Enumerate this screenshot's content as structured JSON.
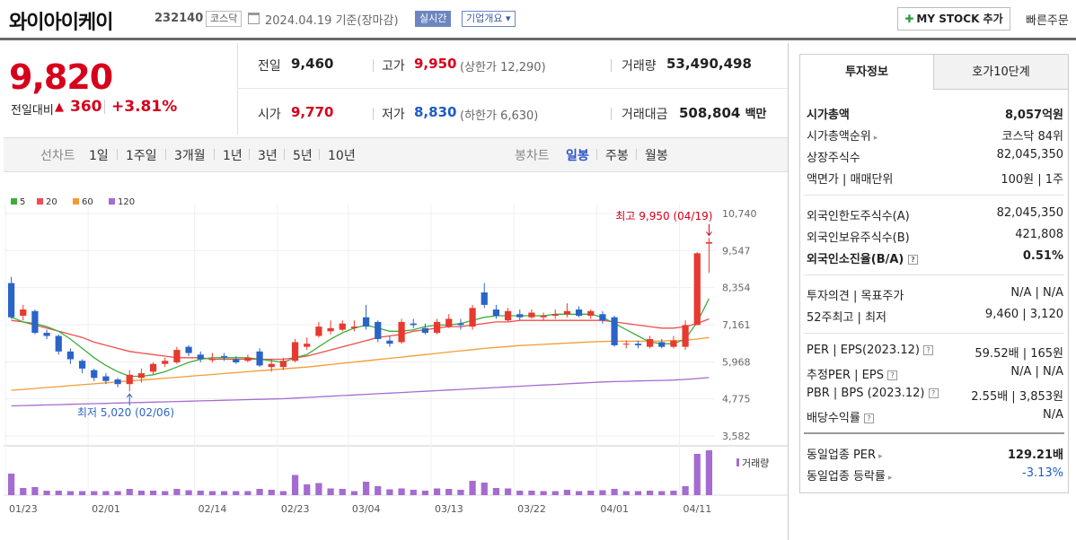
{
  "header": {
    "name": "와이아이케이",
    "code": "232140",
    "market": "코스닥",
    "date": "2024.04.19",
    "basis": "기준(장마감)",
    "realtime": "실시간",
    "company": "기업개요 ▾",
    "mystock": "MY STOCK 추가",
    "quick": "빠른주문"
  },
  "summary": {
    "price": "9,820",
    "change_label": "전일대비",
    "change": "360",
    "change_pct": "+3.81%",
    "prev_label": "전일",
    "prev": "9,460",
    "high_label": "고가",
    "high": "9,950",
    "upper_limit": "(상한가 12,290)",
    "volume_label": "거래량",
    "volume": "53,490,498",
    "open_label": "시가",
    "open": "9,770",
    "low_label": "저가",
    "low": "8,830",
    "lower_limit": "(하한가 6,630)",
    "amount_label": "거래대금",
    "amount": "508,804",
    "amount_unit": "백만"
  },
  "periods": {
    "line_label": "선차트",
    "items": [
      "1일",
      "1주일",
      "3개월",
      "1년",
      "3년",
      "5년",
      "10년"
    ],
    "candle_label": "봉차트",
    "candle_items": [
      "일봉",
      "주봉",
      "월봉"
    ]
  },
  "colors": {
    "up": "#e8392f",
    "down": "#2b64c7",
    "ma5": "#3dae3d",
    "ma20": "#ef4d4d",
    "ma60": "#f59b32",
    "ma120": "#a56bd1"
  },
  "chart_data": {
    "type": "candlestick",
    "legend": [
      "5",
      "20",
      "60",
      "120"
    ],
    "y_ticks": [
      "10,740",
      "9,547",
      "8,354",
      "7,161",
      "5,968",
      "4,775",
      "3,582"
    ],
    "ylim": [
      3582,
      10740
    ],
    "x_ticks": [
      "01/23",
      "02/01",
      "02/14",
      "02/23",
      "03/04",
      "03/13",
      "03/22",
      "04/01",
      "04/11"
    ],
    "max_label": "최고 9,950 (04/19)",
    "min_label": "최저 5,020 (02/06)",
    "volume_label": "거래량",
    "candles": [
      {
        "o": 8500,
        "c": 7400,
        "h": 8700,
        "l": 7350,
        "v": 0.48
      },
      {
        "o": 7450,
        "c": 7650,
        "h": 7800,
        "l": 7300,
        "v": 0.16
      },
      {
        "o": 7600,
        "c": 6900,
        "h": 7650,
        "l": 6850,
        "v": 0.18
      },
      {
        "o": 6900,
        "c": 6800,
        "h": 7000,
        "l": 6700,
        "v": 0.1
      },
      {
        "o": 6800,
        "c": 6300,
        "h": 6850,
        "l": 6200,
        "v": 0.1
      },
      {
        "o": 6300,
        "c": 6050,
        "h": 6400,
        "l": 5900,
        "v": 0.09
      },
      {
        "o": 6000,
        "c": 5750,
        "h": 6050,
        "l": 5600,
        "v": 0.09
      },
      {
        "o": 5700,
        "c": 5450,
        "h": 5750,
        "l": 5350,
        "v": 0.09
      },
      {
        "o": 5500,
        "c": 5350,
        "h": 5600,
        "l": 5250,
        "v": 0.09
      },
      {
        "o": 5400,
        "c": 5250,
        "h": 5450,
        "l": 5150,
        "v": 0.09
      },
      {
        "o": 5250,
        "c": 5550,
        "h": 5700,
        "l": 5020,
        "v": 0.14
      },
      {
        "o": 5450,
        "c": 5600,
        "h": 5750,
        "l": 5300,
        "v": 0.1
      },
      {
        "o": 5650,
        "c": 5900,
        "h": 5950,
        "l": 5550,
        "v": 0.1
      },
      {
        "o": 5900,
        "c": 6000,
        "h": 6100,
        "l": 5800,
        "v": 0.09
      },
      {
        "o": 5950,
        "c": 6350,
        "h": 6450,
        "l": 5900,
        "v": 0.14
      },
      {
        "o": 6450,
        "c": 6250,
        "h": 6500,
        "l": 6150,
        "v": 0.11
      },
      {
        "o": 6200,
        "c": 6050,
        "h": 6300,
        "l": 5950,
        "v": 0.1
      },
      {
        "o": 6050,
        "c": 6050,
        "h": 6250,
        "l": 5950,
        "v": 0.09
      },
      {
        "o": 6150,
        "c": 6100,
        "h": 6250,
        "l": 6000,
        "v": 0.09
      },
      {
        "o": 6050,
        "c": 5950,
        "h": 6150,
        "l": 5900,
        "v": 0.09
      },
      {
        "o": 6000,
        "c": 6100,
        "h": 6200,
        "l": 5950,
        "v": 0.09
      },
      {
        "o": 6300,
        "c": 5850,
        "h": 6400,
        "l": 5800,
        "v": 0.14
      },
      {
        "o": 5800,
        "c": 5900,
        "h": 6050,
        "l": 5650,
        "v": 0.12
      },
      {
        "o": 5800,
        "c": 6000,
        "h": 6100,
        "l": 5700,
        "v": 0.09
      },
      {
        "o": 6000,
        "c": 6600,
        "h": 6700,
        "l": 5950,
        "v": 0.45
      },
      {
        "o": 6450,
        "c": 6550,
        "h": 6750,
        "l": 6350,
        "v": 0.24
      },
      {
        "o": 6800,
        "c": 7100,
        "h": 7250,
        "l": 6750,
        "v": 0.27
      },
      {
        "o": 6950,
        "c": 7050,
        "h": 7300,
        "l": 6850,
        "v": 0.15
      },
      {
        "o": 7000,
        "c": 7200,
        "h": 7300,
        "l": 6950,
        "v": 0.14
      },
      {
        "o": 7050,
        "c": 7100,
        "h": 7300,
        "l": 6950,
        "v": 0.09
      },
      {
        "o": 7400,
        "c": 7100,
        "h": 7800,
        "l": 7000,
        "v": 0.3
      },
      {
        "o": 7250,
        "c": 6700,
        "h": 7300,
        "l": 6600,
        "v": 0.2
      },
      {
        "o": 6650,
        "c": 6550,
        "h": 6800,
        "l": 6450,
        "v": 0.13
      },
      {
        "o": 6600,
        "c": 7250,
        "h": 7350,
        "l": 6550,
        "v": 0.15
      },
      {
        "o": 7200,
        "c": 7150,
        "h": 7350,
        "l": 7050,
        "v": 0.12
      },
      {
        "o": 7050,
        "c": 6900,
        "h": 7200,
        "l": 6850,
        "v": 0.1
      },
      {
        "o": 6900,
        "c": 7250,
        "h": 7350,
        "l": 6850,
        "v": 0.15
      },
      {
        "o": 7100,
        "c": 7350,
        "h": 7500,
        "l": 7050,
        "v": 0.14
      },
      {
        "o": 7200,
        "c": 7150,
        "h": 7350,
        "l": 7000,
        "v": 0.12
      },
      {
        "o": 7100,
        "c": 7700,
        "h": 7800,
        "l": 7000,
        "v": 0.32
      },
      {
        "o": 8200,
        "c": 7800,
        "h": 8500,
        "l": 7700,
        "v": 0.28
      },
      {
        "o": 7650,
        "c": 7450,
        "h": 7800,
        "l": 7350,
        "v": 0.16
      },
      {
        "o": 7300,
        "c": 7600,
        "h": 7700,
        "l": 7250,
        "v": 0.15
      },
      {
        "o": 7500,
        "c": 7400,
        "h": 7650,
        "l": 7300,
        "v": 0.1
      },
      {
        "o": 7400,
        "c": 7550,
        "h": 7650,
        "l": 7350,
        "v": 0.1
      },
      {
        "o": 7400,
        "c": 7450,
        "h": 7550,
        "l": 7300,
        "v": 0.09
      },
      {
        "o": 7450,
        "c": 7500,
        "h": 7650,
        "l": 7350,
        "v": 0.09
      },
      {
        "o": 7500,
        "c": 7600,
        "h": 7850,
        "l": 7400,
        "v": 0.12
      },
      {
        "o": 7650,
        "c": 7450,
        "h": 7750,
        "l": 7400,
        "v": 0.09
      },
      {
        "o": 7450,
        "c": 7600,
        "h": 7650,
        "l": 7350,
        "v": 0.1
      },
      {
        "o": 7500,
        "c": 7300,
        "h": 7600,
        "l": 7200,
        "v": 0.11
      },
      {
        "o": 7400,
        "c": 6500,
        "h": 7450,
        "l": 6450,
        "v": 0.14
      },
      {
        "o": 6550,
        "c": 6550,
        "h": 6650,
        "l": 6400,
        "v": 0.09
      },
      {
        "o": 6550,
        "c": 6500,
        "h": 6650,
        "l": 6400,
        "v": 0.09
      },
      {
        "o": 6450,
        "c": 6700,
        "h": 6800,
        "l": 6400,
        "v": 0.1
      },
      {
        "o": 6600,
        "c": 6450,
        "h": 6700,
        "l": 6400,
        "v": 0.09
      },
      {
        "o": 6450,
        "c": 6650,
        "h": 6800,
        "l": 6400,
        "v": 0.1
      },
      {
        "o": 6450,
        "c": 7150,
        "h": 7300,
        "l": 6350,
        "v": 0.2
      },
      {
        "o": 7150,
        "c": 9460,
        "h": 9500,
        "l": 7150,
        "v": 0.92
      },
      {
        "o": 9770,
        "c": 9820,
        "h": 9950,
        "l": 8830,
        "v": 1.0
      }
    ],
    "ma5": [
      7400,
      7250,
      7200,
      7100,
      6950,
      6700,
      6400,
      6100,
      5850,
      5650,
      5500,
      5500,
      5550,
      5650,
      5800,
      5950,
      6050,
      6100,
      6100,
      6100,
      6100,
      6050,
      6000,
      5950,
      6100,
      6200,
      6450,
      6700,
      6900,
      7050,
      7150,
      7050,
      6950,
      6950,
      7000,
      7100,
      7150,
      7150,
      7200,
      7300,
      7400,
      7450,
      7450,
      7450,
      7450,
      7450,
      7500,
      7500,
      7500,
      7500,
      7400,
      7200,
      7000,
      6800,
      6600,
      6550,
      6550,
      6700,
      7250,
      8000
    ],
    "ma20": [
      7300,
      7250,
      7150,
      7050,
      6950,
      6850,
      6750,
      6600,
      6500,
      6400,
      6300,
      6250,
      6200,
      6150,
      6100,
      6100,
      6100,
      6050,
      6050,
      6050,
      6050,
      6050,
      6050,
      6050,
      6100,
      6150,
      6250,
      6350,
      6450,
      6550,
      6650,
      6750,
      6800,
      6850,
      6950,
      7000,
      7050,
      7100,
      7100,
      7150,
      7200,
      7250,
      7250,
      7300,
      7300,
      7300,
      7300,
      7300,
      7300,
      7300,
      7300,
      7250,
      7200,
      7150,
      7100,
      7050,
      7050,
      7100,
      7200,
      7350
    ],
    "ma60": [
      5050,
      5080,
      5110,
      5140,
      5170,
      5200,
      5230,
      5260,
      5290,
      5320,
      5350,
      5380,
      5410,
      5440,
      5470,
      5500,
      5530,
      5560,
      5590,
      5620,
      5650,
      5680,
      5710,
      5740,
      5770,
      5800,
      5840,
      5880,
      5920,
      5960,
      6000,
      6040,
      6080,
      6120,
      6160,
      6200,
      6240,
      6280,
      6320,
      6360,
      6400,
      6430,
      6460,
      6490,
      6510,
      6530,
      6550,
      6570,
      6590,
      6610,
      6620,
      6630,
      6630,
      6630,
      6630,
      6640,
      6650,
      6660,
      6700,
      6750
    ],
    "ma120": [
      4550,
      4560,
      4570,
      4580,
      4590,
      4600,
      4610,
      4620,
      4630,
      4640,
      4650,
      4660,
      4670,
      4680,
      4690,
      4700,
      4710,
      4720,
      4730,
      4740,
      4750,
      4760,
      4770,
      4780,
      4800,
      4820,
      4840,
      4860,
      4880,
      4900,
      4920,
      4940,
      4960,
      4980,
      5000,
      5020,
      5040,
      5060,
      5080,
      5100,
      5120,
      5140,
      5160,
      5180,
      5200,
      5220,
      5240,
      5260,
      5280,
      5300,
      5320,
      5330,
      5340,
      5350,
      5360,
      5370,
      5380,
      5400,
      5430,
      5460
    ]
  },
  "invest": {
    "tabs": [
      "투자정보",
      "호가10단계"
    ],
    "rows1": [
      {
        "label": "시가총액",
        "value": "8,057억원"
      },
      {
        "label": "시가총액순위",
        "value": "코스닥 84위"
      },
      {
        "label": "상장주식수",
        "value": "82,045,350"
      },
      {
        "label": "액면가 | 매매단위",
        "value": "100원 | 1주"
      }
    ],
    "rows2": [
      {
        "label": "외국인한도주식수(A)",
        "value": "82,045,350"
      },
      {
        "label": "외국인보유주식수(B)",
        "value": "421,808"
      },
      {
        "label": "외국인소진율(B/A)",
        "value": "0.51%"
      }
    ],
    "rows3": [
      {
        "label": "투자의견 | 목표주가",
        "value": "N/A | N/A"
      },
      {
        "label": "52주최고 | 최저",
        "value": "9,460 | 3,120"
      }
    ],
    "rows4": [
      {
        "label": "PER | EPS(2023.12)",
        "value": "59.52배 | 165원"
      },
      {
        "label": "추정PER | EPS",
        "value": "N/A | N/A"
      },
      {
        "label": "PBR | BPS (2023.12)",
        "value": "2.55배 | 3,853원"
      },
      {
        "label": "배당수익률",
        "value": "N/A"
      }
    ],
    "rows5": [
      {
        "label": "동일업종 PER",
        "value": "129.21배"
      },
      {
        "label": "동일업종 등락률",
        "value": "-3.13%"
      }
    ]
  }
}
